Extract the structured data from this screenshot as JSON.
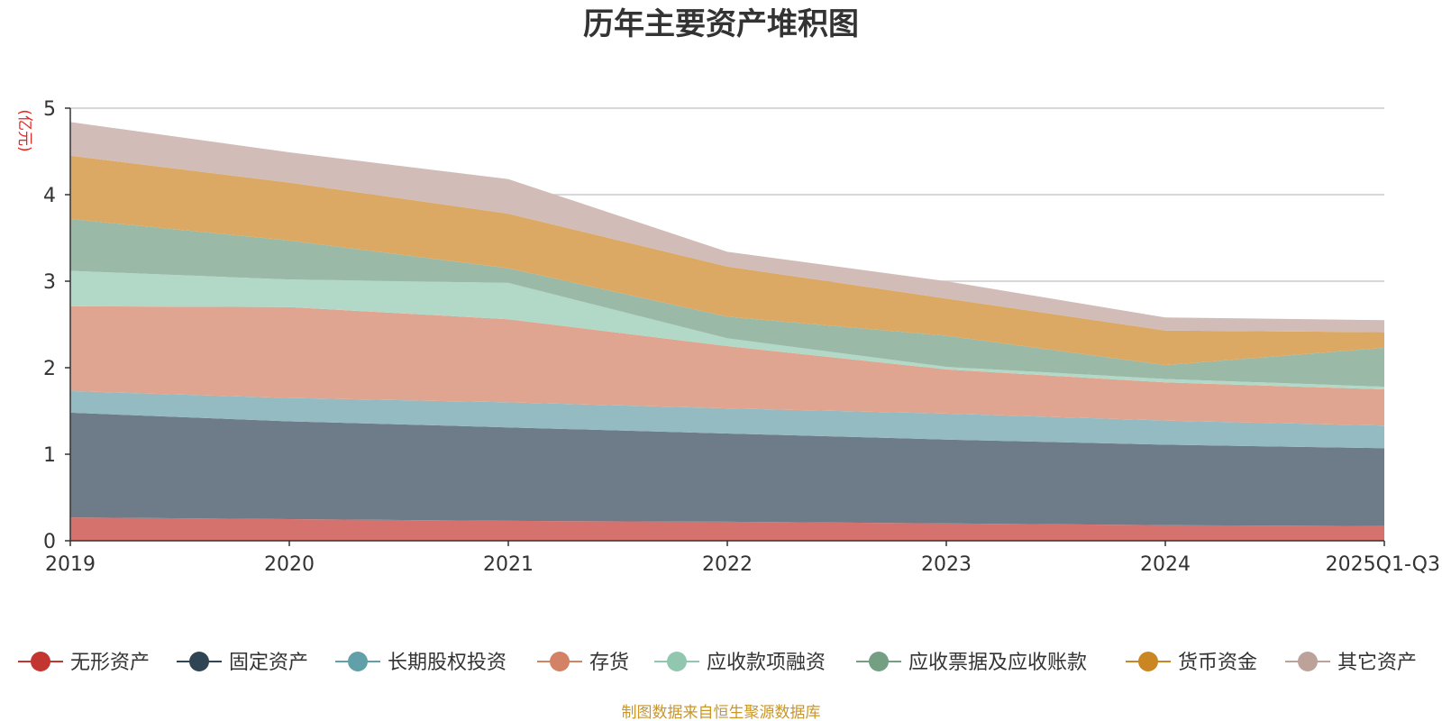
{
  "chart_data": {
    "type": "area",
    "stacked": true,
    "title": "历年主要资产堆积图",
    "unit_label": "(亿元)",
    "categories": [
      "2019",
      "2020",
      "2021",
      "2022",
      "2023",
      "2024",
      "2025Q1-Q3"
    ],
    "ylim": [
      0,
      5
    ],
    "yticks": [
      "0",
      "1",
      "2",
      "3",
      "4",
      "5"
    ],
    "grid": true,
    "legend_position": "bottom",
    "series": [
      {
        "name": "无形资产",
        "color": "#d6726e",
        "legend_color": "#c23531",
        "values": [
          0.27,
          0.25,
          0.23,
          0.22,
          0.2,
          0.18,
          0.17
        ]
      },
      {
        "name": "固定资产",
        "color": "#6e7c89",
        "legend_color": "#2f4554",
        "values": [
          1.21,
          1.13,
          1.08,
          1.02,
          0.97,
          0.93,
          0.9
        ]
      },
      {
        "name": "长期股权投资",
        "color": "#93bbc1",
        "legend_color": "#61a0a8",
        "values": [
          0.25,
          0.27,
          0.29,
          0.29,
          0.3,
          0.28,
          0.26
        ]
      },
      {
        "name": "存货",
        "color": "#e0a590",
        "legend_color": "#d48265",
        "values": [
          0.98,
          1.05,
          0.96,
          0.72,
          0.51,
          0.44,
          0.42
        ]
      },
      {
        "name": "应收款项融资",
        "color": "#b2d9c8",
        "legend_color": "#91c7ae",
        "values": [
          0.41,
          0.32,
          0.42,
          0.09,
          0.03,
          0.04,
          0.03
        ]
      },
      {
        "name": "应收票据及应收账款",
        "color": "#9ab9a6",
        "legend_color": "#749f83",
        "values": [
          0.6,
          0.45,
          0.17,
          0.25,
          0.36,
          0.16,
          0.45
        ]
      },
      {
        "name": "货币资金",
        "color": "#dca964",
        "legend_color": "#ca8622",
        "values": [
          0.73,
          0.67,
          0.63,
          0.58,
          0.43,
          0.4,
          0.18
        ]
      },
      {
        "name": "其它资产",
        "color": "#d1bcb7",
        "legend_color": "#bda29a",
        "values": [
          0.39,
          0.35,
          0.4,
          0.17,
          0.2,
          0.15,
          0.14
        ]
      }
    ],
    "source_note": "制图数据来自恒生聚源数据库"
  }
}
